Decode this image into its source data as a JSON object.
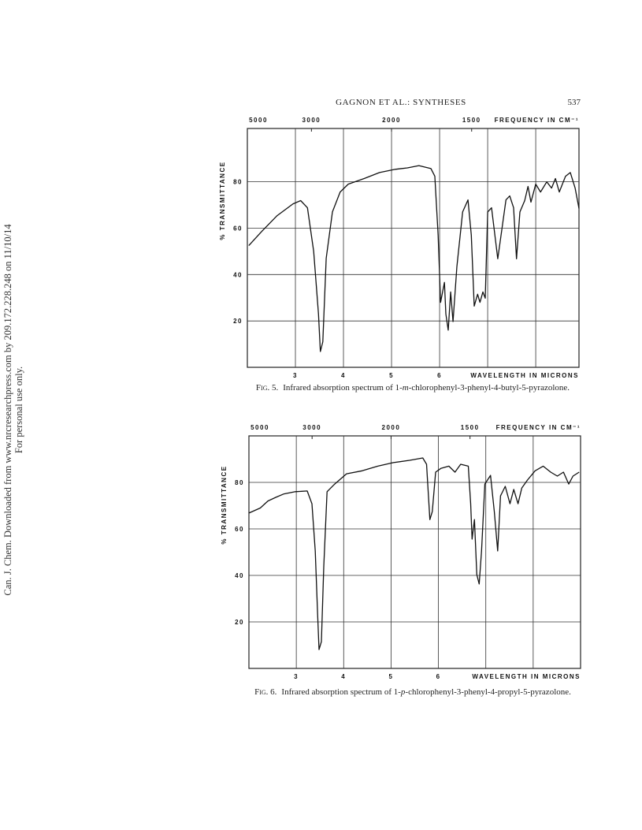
{
  "header": {
    "running_title": "GAGNON ET AL.: SYNTHESES",
    "page_number": "537"
  },
  "watermark": [
    "Can. J. Chem. Downloaded from www.nrcresearchpress.com by 209.172.228.248 on 11/10/14",
    "For personal use only."
  ],
  "captions": [
    {
      "label": "Fig. 5.",
      "parts": [
        "Infrared absorption spectrum of 1-",
        "m",
        "-chlorophenyl-3-phenyl-4-butyl-5-pyrazolone."
      ]
    },
    {
      "label": "Fig. 6.",
      "parts": [
        "Infrared absorption spectrum of 1-",
        "p",
        "-chlorophenyl-3-phenyl-4-propyl-5-pyrazolone."
      ]
    }
  ],
  "chart_data": [
    {
      "type": "line",
      "xlabel": "WAVELENGTH IN MICRONS",
      "x2label": "FREQUENCY IN CM⁻¹",
      "ylabel": "% TRANSMITTANCE",
      "xlim": [
        2,
        8.9
      ],
      "ylim": [
        0,
        103
      ],
      "xticks": [
        3,
        4,
        5,
        6
      ],
      "xgrid": [
        3,
        4,
        5,
        6,
        7,
        8
      ],
      "x2ticks": [
        5000,
        3000,
        2000,
        1500
      ],
      "yticks": [
        20,
        40,
        60,
        80
      ],
      "grid": true,
      "series": [
        {
          "color": "#111",
          "x": [
            2.03,
            2.3,
            2.62,
            2.95,
            3.11,
            3.25,
            3.38,
            3.48,
            3.52,
            3.57,
            3.64,
            3.77,
            3.93,
            4.1,
            4.43,
            4.75,
            5.08,
            5.33,
            5.57,
            5.82,
            5.9,
            5.97,
            6.02,
            6.1,
            6.13,
            6.18,
            6.23,
            6.28,
            6.36,
            6.48,
            6.59,
            6.66,
            6.72,
            6.79,
            6.84,
            6.9,
            6.95,
            7.0,
            7.08,
            7.21,
            7.38,
            7.46,
            7.54,
            7.6,
            7.67,
            7.77,
            7.84,
            7.9,
            8.0,
            8.1,
            8.23,
            8.33,
            8.41,
            8.49,
            8.62,
            8.72,
            8.82,
            8.9
          ],
          "values": [
            52.5,
            58.6,
            65.4,
            70.5,
            71.9,
            68.8,
            50,
            23,
            6.8,
            11,
            47,
            67,
            75.6,
            79,
            81.4,
            84,
            85.4,
            86,
            87,
            85.7,
            82.4,
            57,
            28,
            36.6,
            23,
            16,
            32.5,
            19.7,
            43.4,
            67,
            72.2,
            57,
            26.4,
            31.5,
            28,
            32.5,
            29.8,
            67,
            68.8,
            46.8,
            72.2,
            73.9,
            68.8,
            46.8,
            67,
            71.9,
            78,
            71.2,
            79,
            75.6,
            80,
            77.3,
            81.4,
            75.6,
            82.4,
            84,
            77.3,
            68.5
          ]
        }
      ]
    },
    {
      "type": "line",
      "xlabel": "WAVELENGTH IN MICRONS",
      "x2label": "FREQUENCY IN CM⁻¹",
      "ylabel": "% TRANSMITTANCE",
      "xlim": [
        2,
        9
      ],
      "ylim": [
        0,
        100
      ],
      "xticks": [
        3,
        4,
        5,
        6
      ],
      "xgrid": [
        3,
        4,
        5,
        6,
        7,
        8
      ],
      "x2ticks": [
        5000,
        3000,
        2000,
        1500
      ],
      "yticks": [
        20,
        40,
        60,
        80
      ],
      "grid": true,
      "series": [
        {
          "color": "#111",
          "x": [
            2.0,
            2.24,
            2.4,
            2.57,
            2.73,
            2.98,
            3.23,
            3.33,
            3.4,
            3.45,
            3.48,
            3.53,
            3.58,
            3.65,
            3.81,
            4.06,
            4.39,
            4.72,
            5.05,
            5.39,
            5.67,
            5.75,
            5.82,
            5.87,
            5.94,
            6.05,
            6.22,
            6.35,
            6.47,
            6.63,
            6.68,
            6.71,
            6.76,
            6.81,
            6.86,
            6.91,
            6.98,
            7.1,
            7.18,
            7.25,
            7.31,
            7.41,
            7.51,
            7.59,
            7.68,
            7.76,
            7.88,
            8.04,
            8.21,
            8.37,
            8.51,
            8.64,
            8.75,
            8.84,
            8.97
          ],
          "values": [
            66.8,
            69,
            72,
            73.6,
            75,
            76,
            76.3,
            70.8,
            50.5,
            23.4,
            8.1,
            11.5,
            43.7,
            76,
            79.3,
            83.7,
            85,
            87,
            88.5,
            89.5,
            90.5,
            87.8,
            64,
            67.5,
            84.4,
            86,
            87,
            84.4,
            87.8,
            87,
            70.8,
            55.6,
            64,
            40.3,
            36.3,
            50.5,
            79.3,
            83,
            67.5,
            50.5,
            74.2,
            78.3,
            70.8,
            77,
            70.8,
            77.6,
            81,
            85,
            87,
            84.4,
            82.7,
            84.4,
            79.3,
            82.7,
            84.4
          ]
        }
      ]
    }
  ]
}
